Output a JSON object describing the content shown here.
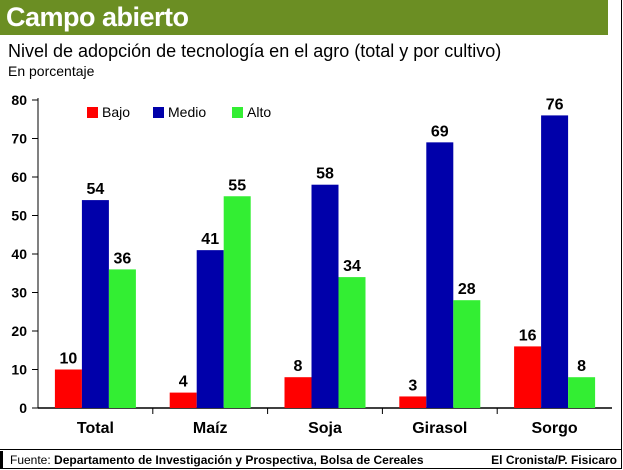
{
  "header": {
    "title": "Campo abierto",
    "subtitle": "Nivel de adopción de tecnología en el agro (total y por cultivo)",
    "unit": "En porcentaje"
  },
  "footer": {
    "source_label": "Fuente:",
    "source_text": "Departamento de Investigación y Prospectiva, Bolsa de Cereales",
    "credit": "El Cronista/P. Fisicaro"
  },
  "colors": {
    "banner": "#6b8e23",
    "bajo": "#ff0000",
    "medio": "#0000aa",
    "alto": "#33ee33"
  },
  "chart_data": {
    "type": "bar",
    "categories": [
      "Total",
      "Maíz",
      "Soja",
      "Girasol",
      "Sorgo"
    ],
    "series": [
      {
        "name": "Bajo",
        "color": "#ff0000",
        "values": [
          10,
          4,
          8,
          3,
          16
        ]
      },
      {
        "name": "Medio",
        "color": "#0000aa",
        "values": [
          54,
          41,
          58,
          69,
          76
        ]
      },
      {
        "name": "Alto",
        "color": "#33ee33",
        "values": [
          36,
          55,
          34,
          28,
          8
        ]
      }
    ],
    "ylim": [
      0,
      80
    ],
    "yticks": [
      0,
      10,
      20,
      30,
      40,
      50,
      60,
      70,
      80
    ],
    "grid": false,
    "legend_position": "top-left",
    "data_labels": true
  }
}
